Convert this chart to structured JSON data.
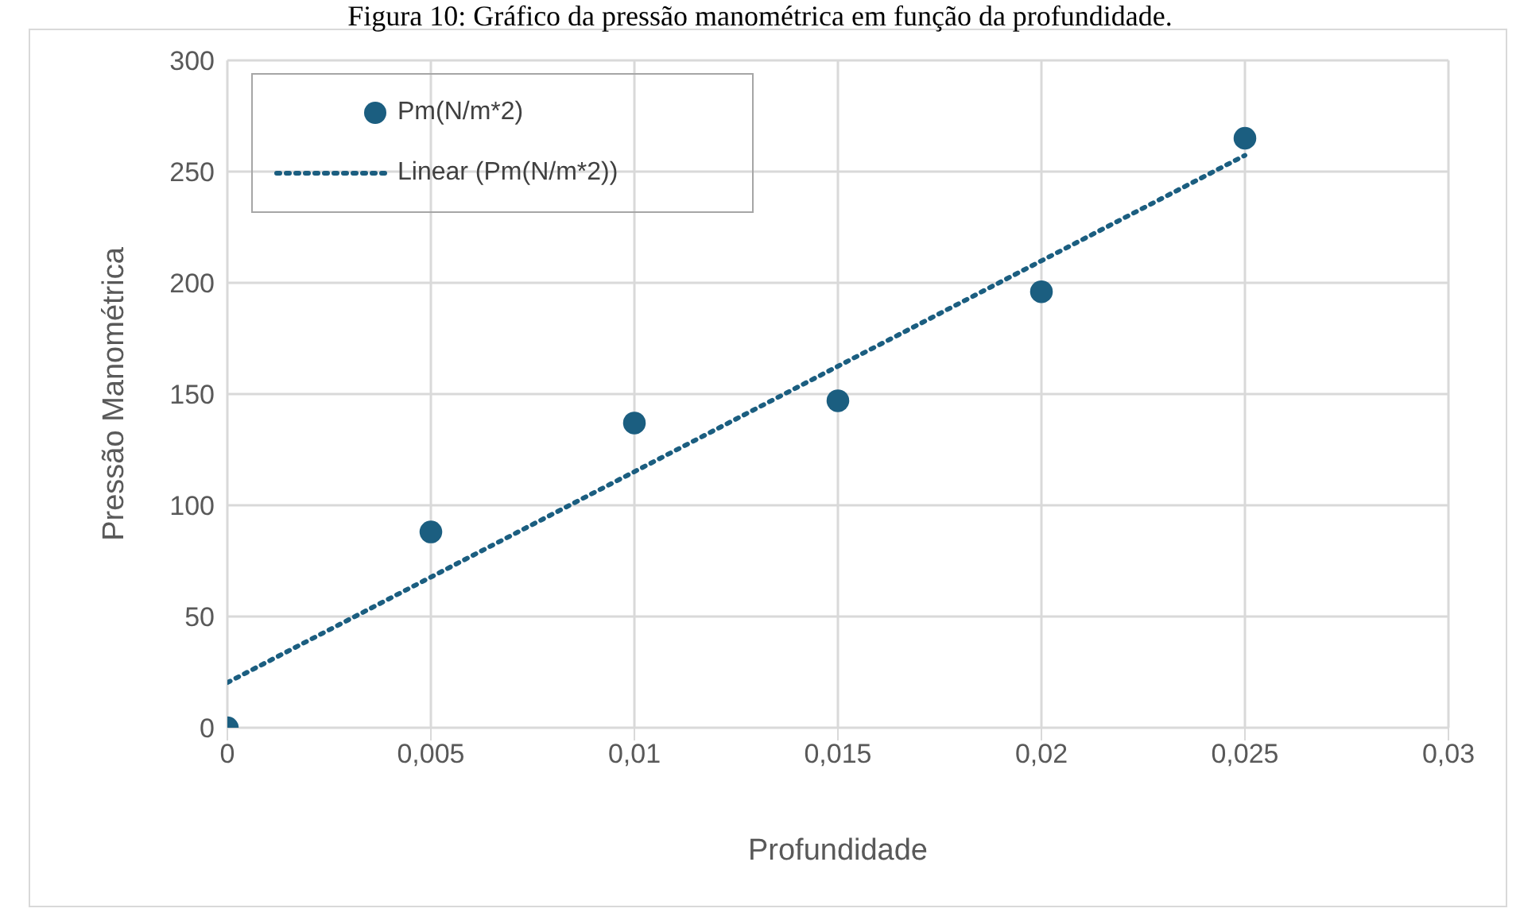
{
  "chart_data": {
    "type": "scatter",
    "title": "Figura 10: Gráfico da pressão manométrica em função da profundidade.",
    "xlabel": "Profundidade",
    "ylabel": "Pressão Manométrica",
    "xlim": [
      0,
      0.03
    ],
    "xticks": [
      0,
      {
        "value": 0.005,
        "label": "0,005"
      },
      {
        "value": 0.01,
        "label": "0,01"
      },
      {
        "value": 0.015,
        "label": "0,015"
      },
      {
        "value": 0.02,
        "label": "0,02"
      },
      {
        "value": 0.025,
        "label": "0,025"
      },
      {
        "value": 0.03,
        "label": "0,03"
      }
    ],
    "ylim": [
      0,
      300
    ],
    "yticks": [
      0,
      50,
      100,
      150,
      200,
      250,
      300
    ],
    "grid": true,
    "legend": "top left",
    "series": [
      {
        "name": "Pm(N/m*2)",
        "marker": "circle",
        "color": "#1b5e80",
        "x": [
          0,
          0.005,
          0.01,
          0.015,
          0.02,
          0.025
        ],
        "values": [
          0,
          88,
          137,
          147,
          196,
          265
        ]
      },
      {
        "name": "Linear (Pm(N/m*2))",
        "type": "line",
        "line_style": "dotted",
        "color": "#1b5e80",
        "x": [
          0,
          0.025
        ],
        "values": [
          20.3,
          257.3
        ]
      }
    ]
  }
}
